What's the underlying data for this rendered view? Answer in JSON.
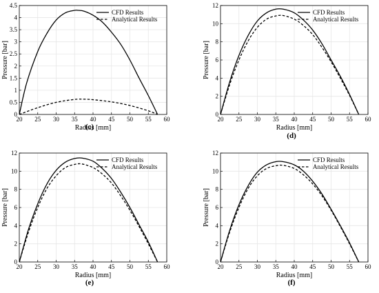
{
  "chart_data": [
    {
      "type": "line",
      "panel_label": "c",
      "xlabel": "Radius [mm]",
      "ylabel": "Pressure [bar]",
      "xlim": [
        20,
        60
      ],
      "ylim": [
        0,
        4.5
      ],
      "xticks": [
        20,
        25,
        30,
        35,
        40,
        45,
        50,
        55,
        60
      ],
      "yticks": [
        0,
        0.5,
        1,
        1.5,
        2,
        2.5,
        3,
        3.5,
        4,
        4.5
      ],
      "grid": true,
      "legend_position": "top-right",
      "series": [
        {
          "name": "CFD Results",
          "style": "solid",
          "x": [
            20,
            22,
            25,
            27.5,
            30,
            32.5,
            35,
            36,
            37.5,
            40,
            42.5,
            45,
            47.5,
            50,
            52.5,
            55,
            57.5
          ],
          "y": [
            0.0,
            1.3,
            2.6,
            3.35,
            3.9,
            4.2,
            4.3,
            4.3,
            4.27,
            4.1,
            3.82,
            3.4,
            2.9,
            2.25,
            1.5,
            0.78,
            0.0
          ]
        },
        {
          "name": "Analytical Results",
          "style": "dashed",
          "x": [
            20,
            25,
            30,
            35,
            37.5,
            40,
            45,
            50,
            55,
            57.5
          ],
          "y": [
            0.0,
            0.28,
            0.5,
            0.62,
            0.63,
            0.61,
            0.52,
            0.37,
            0.15,
            0.0
          ]
        }
      ]
    },
    {
      "type": "line",
      "panel_label": "d",
      "xlabel": "Radius [mm]",
      "ylabel": "Pressure [bar]",
      "xlim": [
        20,
        60
      ],
      "ylim": [
        0,
        12
      ],
      "xticks": [
        20,
        25,
        30,
        35,
        40,
        45,
        50,
        55,
        60
      ],
      "yticks": [
        0,
        2,
        4,
        6,
        8,
        10,
        12
      ],
      "grid": true,
      "legend_position": "top-right",
      "series": [
        {
          "name": "CFD Results",
          "style": "solid",
          "x": [
            20,
            22.5,
            25,
            27.5,
            30,
            32.5,
            35,
            37,
            40,
            42.5,
            45,
            47.5,
            50,
            52.5,
            55,
            57.5
          ],
          "y": [
            0.0,
            3.6,
            6.5,
            8.7,
            10.3,
            11.2,
            11.6,
            11.6,
            11.2,
            10.4,
            9.3,
            7.8,
            6.0,
            4.2,
            2.2,
            0.0
          ]
        },
        {
          "name": "Analytical Results",
          "style": "dashed",
          "x": [
            20,
            22.5,
            25,
            27.5,
            30,
            32.5,
            35,
            37,
            40,
            42.5,
            45,
            47.5,
            50,
            52.5,
            55,
            57.5
          ],
          "y": [
            0.0,
            3.3,
            6.0,
            8.1,
            9.6,
            10.5,
            10.85,
            10.9,
            10.5,
            9.8,
            8.8,
            7.4,
            5.8,
            4.0,
            2.1,
            0.0
          ]
        }
      ]
    },
    {
      "type": "line",
      "panel_label": "e",
      "xlabel": "Radius [mm]",
      "ylabel": "Pressure [bar]",
      "xlim": [
        20,
        60
      ],
      "ylim": [
        0,
        12
      ],
      "xticks": [
        20,
        25,
        30,
        35,
        40,
        45,
        50,
        55,
        60
      ],
      "yticks": [
        0,
        2,
        4,
        6,
        8,
        10,
        12
      ],
      "grid": true,
      "legend_position": "top-right",
      "series": [
        {
          "name": "CFD Results",
          "style": "solid",
          "x": [
            20,
            22.5,
            25,
            27.5,
            30,
            32.5,
            35,
            37,
            40,
            42.5,
            45,
            47.5,
            50,
            52.5,
            55,
            57.5
          ],
          "y": [
            0.0,
            3.6,
            6.4,
            8.6,
            10.1,
            11.0,
            11.4,
            11.45,
            11.1,
            10.3,
            9.2,
            7.7,
            6.0,
            4.1,
            2.2,
            0.0
          ]
        },
        {
          "name": "Analytical Results",
          "style": "dashed",
          "x": [
            20,
            22.5,
            25,
            27.5,
            30,
            32.5,
            35,
            37,
            40,
            42.5,
            45,
            47.5,
            50,
            52.5,
            55,
            57.5
          ],
          "y": [
            0.0,
            3.3,
            6.0,
            8.1,
            9.5,
            10.4,
            10.75,
            10.8,
            10.4,
            9.7,
            8.7,
            7.3,
            5.7,
            3.9,
            2.0,
            0.0
          ]
        }
      ]
    },
    {
      "type": "line",
      "panel_label": "f",
      "xlabel": "Radius [mm]",
      "ylabel": "Pressure [bar]",
      "xlim": [
        20,
        60
      ],
      "ylim": [
        0,
        12
      ],
      "xticks": [
        20,
        25,
        30,
        35,
        40,
        45,
        50,
        55,
        60
      ],
      "yticks": [
        0,
        2,
        4,
        6,
        8,
        10,
        12
      ],
      "grid": true,
      "legend_position": "top-right",
      "series": [
        {
          "name": "CFD Results",
          "style": "solid",
          "x": [
            20,
            22.5,
            25,
            27.5,
            30,
            32.5,
            35,
            37,
            40,
            42.5,
            45,
            47.5,
            50,
            52.5,
            55,
            57.5
          ],
          "y": [
            0.0,
            3.5,
            6.3,
            8.4,
            9.9,
            10.7,
            11.05,
            11.05,
            10.7,
            10.0,
            8.9,
            7.5,
            5.8,
            4.0,
            2.1,
            0.0
          ]
        },
        {
          "name": "Analytical Results",
          "style": "dashed",
          "x": [
            20,
            22.5,
            25,
            27.5,
            30,
            32.5,
            35,
            37,
            40,
            42.5,
            45,
            47.5,
            50,
            52.5,
            55,
            57.5
          ],
          "y": [
            0.0,
            3.3,
            6.0,
            8.1,
            9.5,
            10.3,
            10.6,
            10.65,
            10.3,
            9.6,
            8.6,
            7.3,
            5.7,
            3.9,
            2.0,
            0.0
          ]
        }
      ]
    }
  ]
}
